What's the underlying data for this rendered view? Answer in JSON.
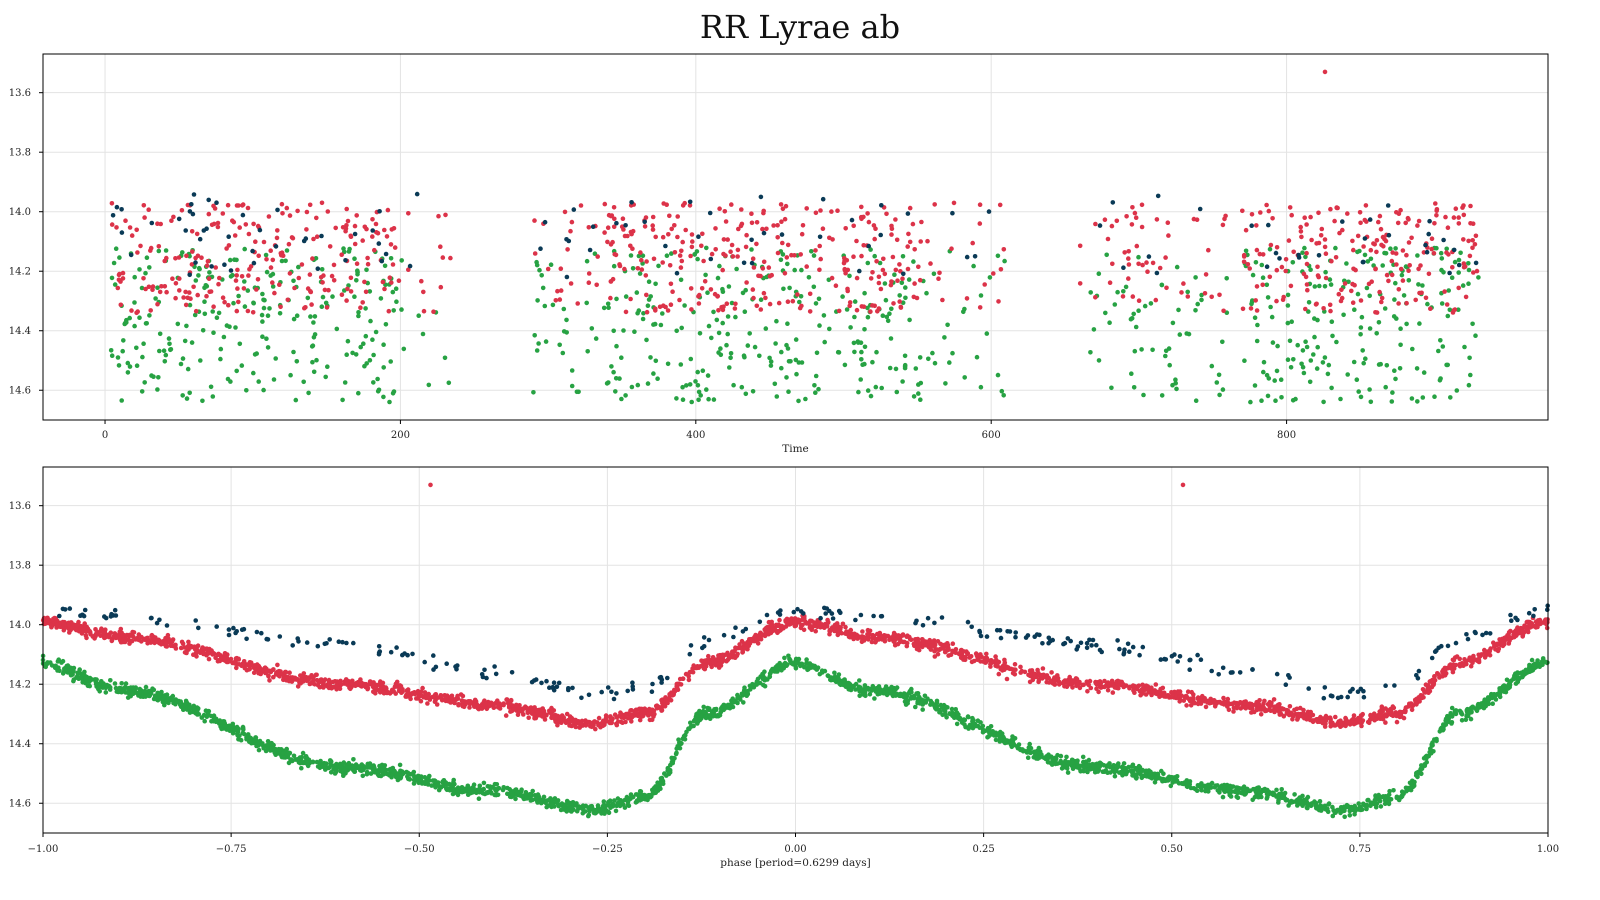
{
  "title": "RR Lyrae ab",
  "colors": {
    "green": "#27a243",
    "red": "#dc3349",
    "navy": "#0a3a56",
    "grid": "#e3e3e3"
  },
  "chart_data": [
    {
      "type": "scatter",
      "panel": "time",
      "xlabel": "Time",
      "ylabel": "",
      "xlim": [
        -42,
        977
      ],
      "ylim": [
        14.7,
        13.47
      ],
      "y_inverted": true,
      "grid": true,
      "xticks": [
        0,
        200,
        400,
        600,
        800
      ],
      "yticks": [
        13.6,
        13.8,
        14.0,
        14.2,
        14.4,
        14.6
      ],
      "xtick_labels": [
        "0",
        "200",
        "400",
        "600",
        "800"
      ],
      "ytick_labels": [
        "13.6",
        "13.8",
        "14.0",
        "14.2",
        "14.4",
        "14.6"
      ],
      "observing_seasons": [
        [
          4,
          198
        ],
        [
          290,
          555
        ],
        [
          660,
          765
        ],
        [
          760,
          930
        ]
      ],
      "outliers": [
        {
          "x": 826,
          "y": 13.53
        }
      ],
      "series": [
        {
          "color": "green",
          "mag_range": [
            14.12,
            14.64
          ],
          "n": 850
        },
        {
          "color": "red",
          "mag_range": [
            13.97,
            14.34
          ],
          "n": 820
        },
        {
          "color": "navy",
          "mag_range": [
            13.94,
            14.22
          ],
          "n": 110
        }
      ]
    },
    {
      "type": "scatter",
      "panel": "phase",
      "xlabel": "phase [period=0.6299 days]",
      "ylabel": "",
      "xlim": [
        -1.0,
        1.0
      ],
      "ylim": [
        14.7,
        13.47
      ],
      "y_inverted": true,
      "grid": true,
      "xticks": [
        -1.0,
        -0.75,
        -0.5,
        -0.25,
        0.0,
        0.25,
        0.5,
        0.75,
        1.0
      ],
      "yticks": [
        13.6,
        13.8,
        14.0,
        14.2,
        14.4,
        14.6
      ],
      "xtick_labels": [
        "−1.00",
        "−0.75",
        "−0.50",
        "−0.25",
        "0.00",
        "0.25",
        "0.50",
        "0.75",
        "1.00"
      ],
      "ytick_labels": [
        "13.6",
        "13.8",
        "14.0",
        "14.2",
        "14.4",
        "14.6"
      ],
      "outliers": [
        {
          "x": -0.485,
          "y": 13.53
        },
        {
          "x": 0.515,
          "y": 13.53
        }
      ],
      "series": [
        {
          "color": "green",
          "curve": [
            [
              0.0,
              14.13
            ],
            [
              0.1,
              14.22
            ],
            [
              0.4,
              14.48
            ],
            [
              0.6,
              14.56
            ],
            [
              0.73,
              14.62
            ],
            [
              0.8,
              14.58
            ],
            [
              0.88,
              14.3
            ],
            [
              1.0,
              14.13
            ]
          ],
          "n": 2400
        },
        {
          "color": "red",
          "curve": [
            [
              0.0,
              13.99
            ],
            [
              0.1,
              14.04
            ],
            [
              0.4,
              14.2
            ],
            [
              0.6,
              14.27
            ],
            [
              0.73,
              14.33
            ],
            [
              0.8,
              14.3
            ],
            [
              0.88,
              14.13
            ],
            [
              1.0,
              13.99
            ]
          ],
          "n": 2400
        },
        {
          "color": "navy",
          "curve": [
            [
              0.0,
              13.95
            ],
            [
              0.1,
              13.97
            ],
            [
              0.4,
              14.07
            ],
            [
              0.6,
              14.16
            ],
            [
              0.73,
              14.23
            ],
            [
              0.8,
              14.21
            ],
            [
              0.88,
              14.05
            ],
            [
              1.0,
              13.95
            ]
          ],
          "n": 260
        }
      ]
    }
  ]
}
